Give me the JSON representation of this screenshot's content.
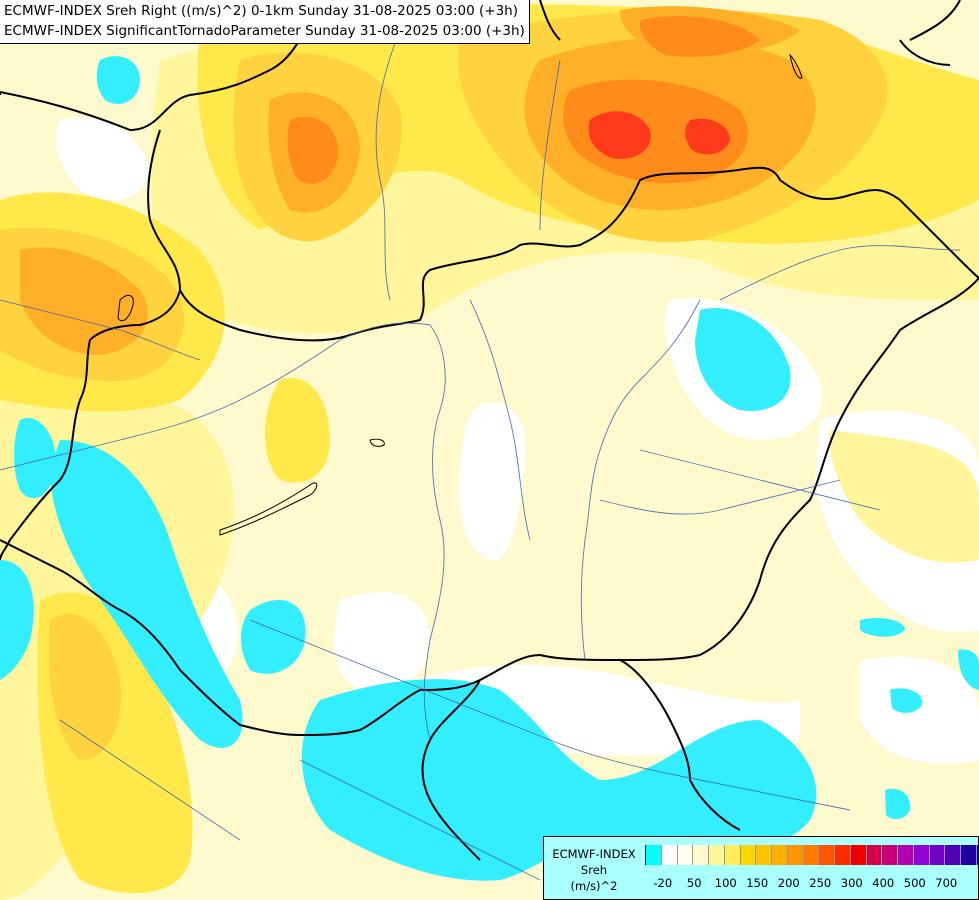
{
  "header": {
    "line1": "ECMWF-INDEX Sreh Right ((m/s)^2) 0-1km Sunday 31-08-2025 03:00 (+3h)",
    "line2": "ECMWF-INDEX SignificantTornadoParameter Sunday 31-08-2025 03:00 (+3h)"
  },
  "legend": {
    "line1": "ECMWF-INDEX",
    "line2": "Sreh",
    "line3": "(m/s)^2",
    "colors": [
      "#00ffff",
      "#ffffff",
      "#fffff0",
      "#fffacd",
      "#fff59d",
      "#ffee58",
      "#ffd700",
      "#ffc400",
      "#ffad00",
      "#ff9500",
      "#ff7b00",
      "#ff5500",
      "#ff2a00",
      "#ee0000",
      "#d4004c",
      "#c8007a",
      "#b300b3",
      "#9400d3",
      "#7000c8",
      "#5000b4",
      "#2000a0",
      "#0a0078"
    ],
    "ticks": [
      "-20",
      "50",
      "100",
      "150",
      "200",
      "250",
      "300",
      "400",
      "500",
      "700"
    ]
  },
  "map": {
    "colors": {
      "cyan": "#33eeff",
      "white": "#ffffff",
      "pale": "#fffacd",
      "lightyellow": "#fff59a",
      "yellow": "#ffe94a",
      "gold": "#ffd23f",
      "orange": "#ffb028",
      "darkorange": "#ff8c1a",
      "red": "#ff3a1a",
      "border": "#000000",
      "river": "#3a5fb0"
    }
  }
}
